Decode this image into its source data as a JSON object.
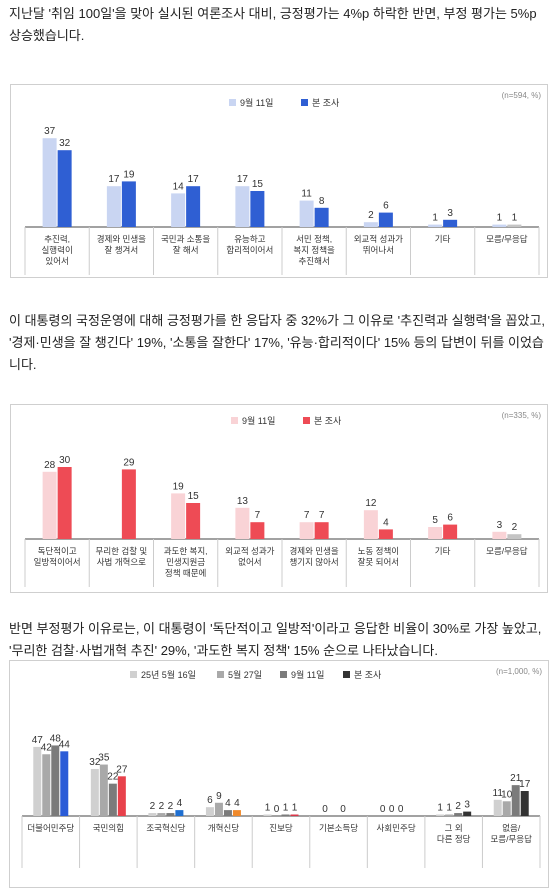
{
  "paragraphs": [
    "지난달 '취임 100일'을 맞아 실시된 여론조사 대비, 긍정평가는 4%p 하락한 반면, 부정 평가는 5%p 상승했습니다.",
    "이 대통령의 국정운영에 대해 긍정평가를 한 응답자 중 32%가 그 이유로 '추진력과 실행력'을 꼽았고, '경제·민생을 잘 챙긴다' 19%, '소통을 잘한다' 17%, '유능·합리적이다' 15% 등의 답변이 뒤를 이었습니다.",
    "반면 부정평가 이유로는, 이 대통령이 '독단적이고 일방적'이라고 응답한 비율이 30%로 가장 높았고, '무리한 검찰·사법개혁 추진' 29%, '과도한 복지 정책' 15% 순으로 나타났습니다."
  ],
  "chart_data": [
    {
      "type": "bar",
      "note": "(n=594, %)",
      "categories": [
        [
          "추진력,",
          "실행력이",
          "있어서"
        ],
        [
          "경제와 민생을",
          "잘 챙겨서"
        ],
        [
          "국민과 소통을",
          "잘 해서"
        ],
        [
          "유능하고",
          "합리적이어서"
        ],
        [
          "서민 정책,",
          "복지 정책을",
          "추진해서"
        ],
        [
          "외교적 성과가",
          "뛰어나서"
        ],
        [
          "기타"
        ],
        [
          "모름/무응답"
        ]
      ],
      "series": [
        {
          "name": "9월 11일",
          "color": "#c9d5f2",
          "values": [
            37,
            17,
            14,
            17,
            11,
            2,
            1,
            1
          ]
        },
        {
          "name": "본 조사",
          "color": "#2f5fd3",
          "values": [
            32,
            19,
            17,
            15,
            8,
            6,
            3,
            1
          ]
        }
      ],
      "last_category_color": "#c4c4c4",
      "ylim": [
        0,
        40
      ]
    },
    {
      "type": "bar",
      "note": "(n=335, %)",
      "categories": [
        [
          "독단적이고",
          "일방적이어서"
        ],
        [
          "무리한 검찰 및",
          "사법 개혁으로"
        ],
        [
          "과도한 복지,",
          "민생지원금",
          "정책 때문에"
        ],
        [
          "외교적 성과가",
          "없어서"
        ],
        [
          "경제와 민생을",
          "챙기지 않아서"
        ],
        [
          "노동 정책이",
          "잘못 되어서"
        ],
        [
          "기타"
        ],
        [
          "모름/무응답"
        ]
      ],
      "series": [
        {
          "name": "9월 11일",
          "color": "#f9d3d6",
          "values": [
            28,
            null,
            19,
            13,
            7,
            12,
            5,
            3
          ]
        },
        {
          "name": "본 조사",
          "color": "#ee4b55",
          "values": [
            30,
            29,
            15,
            7,
            7,
            4,
            6,
            2
          ]
        }
      ],
      "last_category_color": "#c4c4c4",
      "ylim": [
        0,
        40
      ]
    },
    {
      "type": "bar",
      "note": "(n=1,000, %)",
      "categories": [
        [
          "더불어민주당"
        ],
        [
          "국민의힘"
        ],
        [
          "조국혁신당"
        ],
        [
          "개혁신당"
        ],
        [
          "진보당"
        ],
        [
          "기본소득당"
        ],
        [
          "사회민주당"
        ],
        [
          "그 외",
          "다른 정당"
        ],
        [
          "없음/",
          "모름/무응답"
        ]
      ],
      "series": [
        {
          "name": "25년 5월 16일",
          "color": "#d0d0d0",
          "values": [
            47,
            32,
            2,
            6,
            1,
            0,
            0,
            1,
            11
          ]
        },
        {
          "name": "5월 27일",
          "color": "#a9a9a9",
          "values": [
            42,
            35,
            2,
            9,
            0,
            null,
            0,
            1,
            10
          ]
        },
        {
          "name": "9월 11일",
          "color": "#7b7b7b",
          "values": [
            48,
            22,
            2,
            4,
            1,
            0,
            0,
            2,
            21
          ]
        },
        {
          "name": "본 조사",
          "color": "#333333",
          "values": [
            44,
            27,
            4,
            4,
            1,
            null,
            null,
            3,
            17
          ]
        }
      ],
      "party_colors": [
        "#2a5bd7",
        "#e8414b",
        "#1f6fd1",
        "#f08a2c",
        "#d9374a",
        "#333333",
        "#333333",
        "#333333",
        "#333333"
      ],
      "ylim": [
        0,
        50
      ]
    }
  ]
}
